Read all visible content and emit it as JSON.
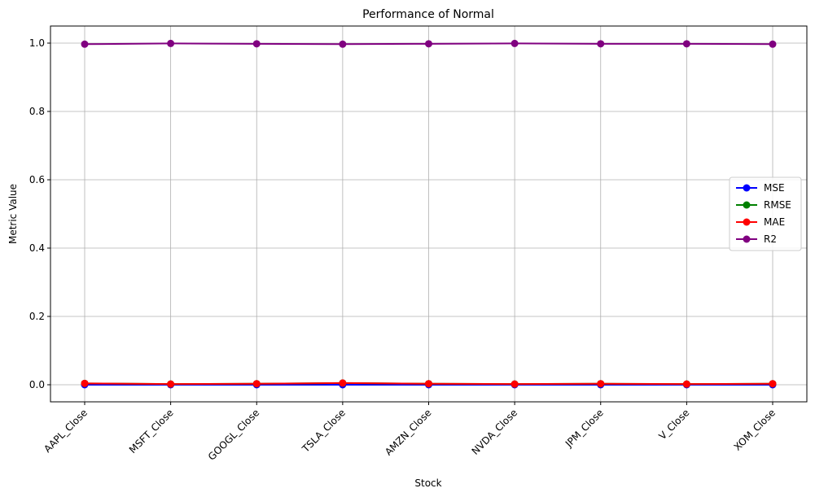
{
  "chart_data": {
    "type": "line",
    "title": "Performance of Normal",
    "xlabel": "Stock",
    "ylabel": "Metric Value",
    "categories": [
      "AAPL_Close",
      "MSFT_Close",
      "GOOGL_Close",
      "TSLA_Close",
      "AMZN_Close",
      "NVDA_Close",
      "JPM_Close",
      "V_Close",
      "XOM_Close"
    ],
    "ylim": [
      -0.05,
      1.05
    ],
    "yticks": [
      "0.0",
      "0.2",
      "0.4",
      "0.6",
      "0.8",
      "1.0"
    ],
    "ytick_values": [
      0.0,
      0.2,
      0.4,
      0.6,
      0.8,
      1.0
    ],
    "grid": true,
    "legend_position": "center-right",
    "series": [
      {
        "name": "MSE",
        "color": "#0000ff",
        "values": [
          0.0,
          0.0,
          0.0,
          0.0,
          0.0,
          0.0,
          0.0,
          0.0,
          0.0
        ]
      },
      {
        "name": "RMSE",
        "color": "#008000",
        "values": [
          0.004,
          0.002,
          0.003,
          0.005,
          0.003,
          0.002,
          0.003,
          0.002,
          0.003
        ]
      },
      {
        "name": "MAE",
        "color": "#ff0000",
        "values": [
          0.004,
          0.002,
          0.003,
          0.005,
          0.003,
          0.002,
          0.003,
          0.002,
          0.003
        ]
      },
      {
        "name": "R2",
        "color": "#800080",
        "values": [
          0.997,
          0.999,
          0.998,
          0.997,
          0.998,
          0.999,
          0.998,
          0.998,
          0.997
        ]
      }
    ]
  }
}
